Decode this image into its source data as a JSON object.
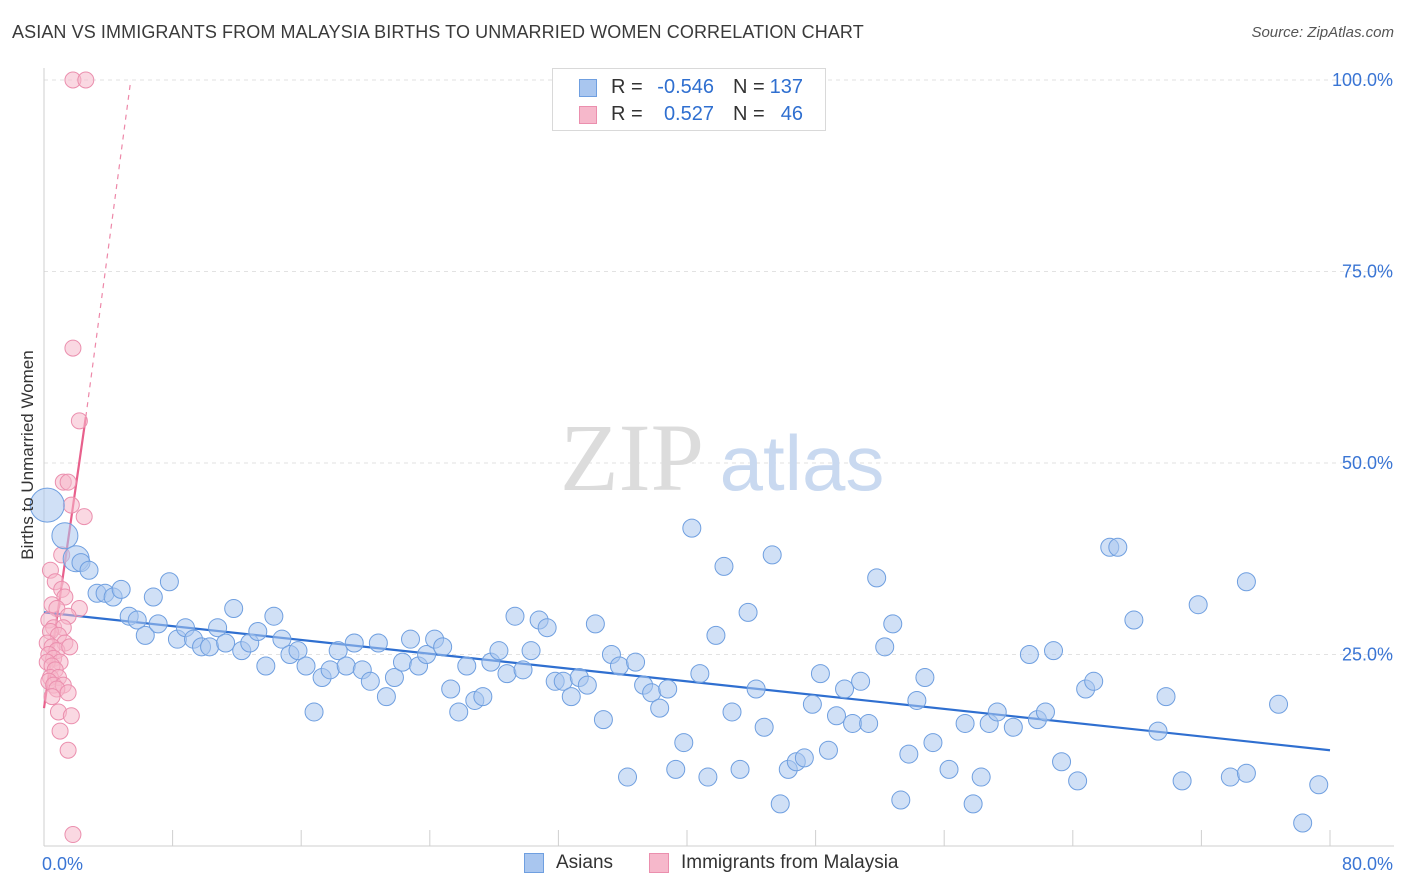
{
  "title": "ASIAN VS IMMIGRANTS FROM MALAYSIA BIRTHS TO UNMARRIED WOMEN CORRELATION CHART",
  "source": "Source: ZipAtlas.com",
  "watermark": {
    "zip": "ZIP",
    "atlas": "atlas"
  },
  "colors": {
    "blue": "#2f6fd0",
    "blue_fill": "#a9c6ef",
    "blue_stroke": "#6f9fe0",
    "pink": "#e8608c",
    "pink_fill": "#f6b8cb",
    "pink_stroke": "#eb8fae",
    "grid": "#e2e2e2",
    "tick_label": "#3a75d4"
  },
  "legend_top": {
    "rows": [
      {
        "series": "Asians",
        "r_label": "R =",
        "r_value": "-0.546",
        "n_label": "N =",
        "n_value": "137"
      },
      {
        "series": "Immigrants from Malaysia",
        "r_label": "R =",
        "r_value": "0.527",
        "n_label": "N =",
        "n_value": "46"
      }
    ]
  },
  "legend_bottom": [
    "Asians",
    "Immigrants from Malaysia"
  ],
  "chart_data": {
    "type": "scatter",
    "title": "ASIAN VS IMMIGRANTS FROM MALAYSIA BIRTHS TO UNMARRIED WOMEN CORRELATION CHART",
    "xlabel": "",
    "ylabel": "Births to Unmarried Women",
    "xlim": [
      0,
      80
    ],
    "ylim": [
      0,
      100
    ],
    "x_tick_labels": [
      "0.0%",
      "80.0%"
    ],
    "y_tick_labels": [
      "25.0%",
      "50.0%",
      "75.0%",
      "100.0%"
    ],
    "y_ticks": [
      25,
      50,
      75,
      100
    ],
    "grid": true,
    "series": [
      {
        "name": "Asians",
        "color": "blue",
        "r": -0.546,
        "n": 137,
        "trend": {
          "x0": 0,
          "y0": 30.5,
          "x1": 80,
          "y1": 12.5
        },
        "points": [
          {
            "x": 0.2,
            "y": 44.5,
            "s": 3
          },
          {
            "x": 1.3,
            "y": 40.5,
            "s": 2
          },
          {
            "x": 2,
            "y": 37.5,
            "s": 2
          },
          {
            "x": 2.3,
            "y": 37
          },
          {
            "x": 2.8,
            "y": 36
          },
          {
            "x": 3.3,
            "y": 33
          },
          {
            "x": 3.8,
            "y": 33
          },
          {
            "x": 4.3,
            "y": 32.5
          },
          {
            "x": 4.8,
            "y": 33.5
          },
          {
            "x": 5.3,
            "y": 30
          },
          {
            "x": 5.8,
            "y": 29.5
          },
          {
            "x": 6.3,
            "y": 27.5
          },
          {
            "x": 6.8,
            "y": 32.5
          },
          {
            "x": 7.1,
            "y": 29
          },
          {
            "x": 7.8,
            "y": 34.5
          },
          {
            "x": 8.3,
            "y": 27
          },
          {
            "x": 8.8,
            "y": 28.5
          },
          {
            "x": 9.3,
            "y": 27
          },
          {
            "x": 9.8,
            "y": 26
          },
          {
            "x": 10.3,
            "y": 26
          },
          {
            "x": 10.8,
            "y": 28.5
          },
          {
            "x": 11.3,
            "y": 26.5
          },
          {
            "x": 11.8,
            "y": 31
          },
          {
            "x": 12.3,
            "y": 25.5
          },
          {
            "x": 12.8,
            "y": 26.5
          },
          {
            "x": 13.3,
            "y": 28
          },
          {
            "x": 13.8,
            "y": 23.5
          },
          {
            "x": 14.3,
            "y": 30
          },
          {
            "x": 14.8,
            "y": 27
          },
          {
            "x": 15.3,
            "y": 25
          },
          {
            "x": 15.8,
            "y": 25.5
          },
          {
            "x": 16.3,
            "y": 23.5
          },
          {
            "x": 16.8,
            "y": 17.5
          },
          {
            "x": 17.3,
            "y": 22
          },
          {
            "x": 17.8,
            "y": 23
          },
          {
            "x": 18.3,
            "y": 25.5
          },
          {
            "x": 18.8,
            "y": 23.5
          },
          {
            "x": 19.3,
            "y": 26.5
          },
          {
            "x": 19.8,
            "y": 23
          },
          {
            "x": 20.3,
            "y": 21.5
          },
          {
            "x": 20.8,
            "y": 26.5
          },
          {
            "x": 21.3,
            "y": 19.5
          },
          {
            "x": 21.8,
            "y": 22
          },
          {
            "x": 22.3,
            "y": 24
          },
          {
            "x": 22.8,
            "y": 27
          },
          {
            "x": 23.3,
            "y": 23.5
          },
          {
            "x": 23.8,
            "y": 25
          },
          {
            "x": 24.3,
            "y": 27
          },
          {
            "x": 24.8,
            "y": 26
          },
          {
            "x": 25.3,
            "y": 20.5
          },
          {
            "x": 25.8,
            "y": 17.5
          },
          {
            "x": 26.3,
            "y": 23.5
          },
          {
            "x": 26.8,
            "y": 19
          },
          {
            "x": 27.3,
            "y": 19.5
          },
          {
            "x": 27.8,
            "y": 24
          },
          {
            "x": 28.3,
            "y": 25.5
          },
          {
            "x": 28.8,
            "y": 22.5
          },
          {
            "x": 29.3,
            "y": 30
          },
          {
            "x": 29.8,
            "y": 23
          },
          {
            "x": 30.3,
            "y": 25.5
          },
          {
            "x": 30.8,
            "y": 29.5
          },
          {
            "x": 31.3,
            "y": 28.5
          },
          {
            "x": 31.8,
            "y": 21.5
          },
          {
            "x": 32.3,
            "y": 21.5
          },
          {
            "x": 32.8,
            "y": 19.5
          },
          {
            "x": 33.3,
            "y": 22
          },
          {
            "x": 33.8,
            "y": 21
          },
          {
            "x": 34.3,
            "y": 29
          },
          {
            "x": 34.8,
            "y": 16.5
          },
          {
            "x": 35.3,
            "y": 25
          },
          {
            "x": 35.8,
            "y": 23.5
          },
          {
            "x": 36.3,
            "y": 9
          },
          {
            "x": 36.8,
            "y": 24
          },
          {
            "x": 37.3,
            "y": 21
          },
          {
            "x": 37.8,
            "y": 20
          },
          {
            "x": 38.3,
            "y": 18
          },
          {
            "x": 38.8,
            "y": 20.5
          },
          {
            "x": 39.3,
            "y": 10
          },
          {
            "x": 39.8,
            "y": 13.5
          },
          {
            "x": 40.3,
            "y": 41.5
          },
          {
            "x": 40.8,
            "y": 22.5
          },
          {
            "x": 41.3,
            "y": 9
          },
          {
            "x": 41.8,
            "y": 27.5
          },
          {
            "x": 42.3,
            "y": 36.5
          },
          {
            "x": 42.8,
            "y": 17.5
          },
          {
            "x": 43.3,
            "y": 10
          },
          {
            "x": 43.8,
            "y": 30.5
          },
          {
            "x": 44.3,
            "y": 20.5
          },
          {
            "x": 44.8,
            "y": 15.5
          },
          {
            "x": 45.3,
            "y": 38
          },
          {
            "x": 45.8,
            "y": 5.5
          },
          {
            "x": 46.3,
            "y": 10
          },
          {
            "x": 46.8,
            "y": 11
          },
          {
            "x": 47.3,
            "y": 11.5
          },
          {
            "x": 47.8,
            "y": 18.5
          },
          {
            "x": 48.3,
            "y": 22.5
          },
          {
            "x": 48.8,
            "y": 12.5
          },
          {
            "x": 49.3,
            "y": 17
          },
          {
            "x": 49.8,
            "y": 20.5
          },
          {
            "x": 50.3,
            "y": 16
          },
          {
            "x": 50.8,
            "y": 21.5
          },
          {
            "x": 51.3,
            "y": 16
          },
          {
            "x": 51.8,
            "y": 35
          },
          {
            "x": 52.3,
            "y": 26
          },
          {
            "x": 52.8,
            "y": 29
          },
          {
            "x": 53.3,
            "y": 6
          },
          {
            "x": 53.8,
            "y": 12
          },
          {
            "x": 54.3,
            "y": 19
          },
          {
            "x": 54.8,
            "y": 22
          },
          {
            "x": 55.3,
            "y": 13.5
          },
          {
            "x": 56.3,
            "y": 10
          },
          {
            "x": 57.3,
            "y": 16
          },
          {
            "x": 57.8,
            "y": 5.5
          },
          {
            "x": 58.3,
            "y": 9
          },
          {
            "x": 58.8,
            "y": 16
          },
          {
            "x": 59.3,
            "y": 17.5
          },
          {
            "x": 60.3,
            "y": 15.5
          },
          {
            "x": 61.3,
            "y": 25
          },
          {
            "x": 61.8,
            "y": 16.5
          },
          {
            "x": 62.3,
            "y": 17.5
          },
          {
            "x": 62.8,
            "y": 25.5
          },
          {
            "x": 63.3,
            "y": 11
          },
          {
            "x": 64.3,
            "y": 8.5
          },
          {
            "x": 64.8,
            "y": 20.5
          },
          {
            "x": 65.3,
            "y": 21.5
          },
          {
            "x": 66.3,
            "y": 39
          },
          {
            "x": 66.8,
            "y": 39
          },
          {
            "x": 67.8,
            "y": 29.5
          },
          {
            "x": 69.3,
            "y": 15
          },
          {
            "x": 69.8,
            "y": 19.5
          },
          {
            "x": 70.8,
            "y": 8.5
          },
          {
            "x": 71.8,
            "y": 31.5
          },
          {
            "x": 73.8,
            "y": 9
          },
          {
            "x": 74.8,
            "y": 34.5
          },
          {
            "x": 74.8,
            "y": 9.5
          },
          {
            "x": 76.8,
            "y": 18.5
          },
          {
            "x": 78.3,
            "y": 3
          },
          {
            "x": 79.3,
            "y": 8
          }
        ]
      },
      {
        "name": "Immigrants from Malaysia",
        "color": "pink",
        "r": 0.527,
        "n": 46,
        "trend": {
          "x0": 0,
          "y0": 18,
          "x1": 2.6,
          "y1": 56
        },
        "trend_ext": {
          "x0": 2.6,
          "y0": 56,
          "x1": 5.4,
          "y1": 100
        },
        "points": [
          {
            "x": 1.8,
            "y": 100
          },
          {
            "x": 2.6,
            "y": 100
          },
          {
            "x": 1.8,
            "y": 65
          },
          {
            "x": 2.2,
            "y": 55.5
          },
          {
            "x": 1.2,
            "y": 47.5
          },
          {
            "x": 1.5,
            "y": 47.5
          },
          {
            "x": 1.7,
            "y": 44.5
          },
          {
            "x": 2.5,
            "y": 43
          },
          {
            "x": 1.1,
            "y": 38
          },
          {
            "x": 0.4,
            "y": 36
          },
          {
            "x": 0.7,
            "y": 34.5
          },
          {
            "x": 1.1,
            "y": 33.5
          },
          {
            "x": 1.3,
            "y": 32.5
          },
          {
            "x": 0.5,
            "y": 31.5
          },
          {
            "x": 0.8,
            "y": 31
          },
          {
            "x": 2.2,
            "y": 31
          },
          {
            "x": 0.3,
            "y": 29.5
          },
          {
            "x": 1.5,
            "y": 30
          },
          {
            "x": 0.6,
            "y": 28.5
          },
          {
            "x": 1.2,
            "y": 28.5
          },
          {
            "x": 0.4,
            "y": 28
          },
          {
            "x": 0.9,
            "y": 27.5
          },
          {
            "x": 1.3,
            "y": 26.5
          },
          {
            "x": 0.2,
            "y": 26.5
          },
          {
            "x": 0.5,
            "y": 26
          },
          {
            "x": 0.8,
            "y": 25.5
          },
          {
            "x": 1.6,
            "y": 26
          },
          {
            "x": 0.3,
            "y": 25
          },
          {
            "x": 0.6,
            "y": 24.5
          },
          {
            "x": 1.0,
            "y": 24
          },
          {
            "x": 0.2,
            "y": 24
          },
          {
            "x": 0.5,
            "y": 23.5
          },
          {
            "x": 0.7,
            "y": 23
          },
          {
            "x": 0.4,
            "y": 22
          },
          {
            "x": 0.9,
            "y": 22
          },
          {
            "x": 0.3,
            "y": 21.5
          },
          {
            "x": 0.6,
            "y": 21
          },
          {
            "x": 1.2,
            "y": 21
          },
          {
            "x": 0.8,
            "y": 20.5
          },
          {
            "x": 1.5,
            "y": 20
          },
          {
            "x": 0.5,
            "y": 19.5
          },
          {
            "x": 0.9,
            "y": 17.5
          },
          {
            "x": 1.7,
            "y": 17
          },
          {
            "x": 1.0,
            "y": 15
          },
          {
            "x": 1.5,
            "y": 12.5
          },
          {
            "x": 1.8,
            "y": 1.5
          }
        ]
      }
    ]
  }
}
